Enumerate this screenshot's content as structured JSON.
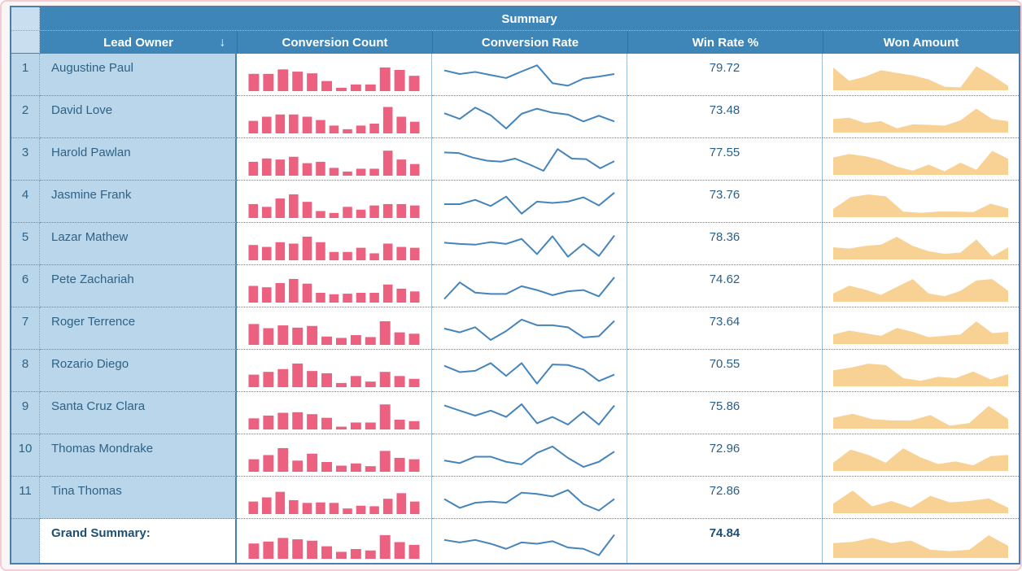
{
  "colors": {
    "header_bg": "#3e86b8",
    "header_text": "#ffffff",
    "light_cell_bg": "#b9d6ea",
    "bar": "#ec6080",
    "line": "#4584bb",
    "area": "#f8d194",
    "row_text": "#2f6286",
    "table_border": "#4b7ea8",
    "frame_border": "#f3ccd4"
  },
  "header": {
    "summary_label": "Summary",
    "sort_icon": "↓"
  },
  "chart_data": {
    "type": "table",
    "title": "Summary",
    "columns": [
      "Lead Owner",
      "Conversion Count",
      "Conversion Rate",
      "Win Rate %",
      "Won Amount"
    ],
    "sort": {
      "column": "Lead Owner",
      "direction": "descending"
    },
    "sparkline_scale": "values normalized 0-100, estimated from pixels",
    "sparkline_types": {
      "conversion_count": "bar",
      "conversion_rate": "line",
      "won_amount": "area"
    },
    "rows": [
      {
        "index": 1,
        "lead_owner": "Augustine Paul",
        "win_rate_pct": 79.72,
        "conversion_count_bars": [
          62,
          62,
          78,
          70,
          64,
          36,
          12,
          24,
          24,
          85,
          76,
          55
        ],
        "conversion_rate_line": [
          72,
          58,
          66,
          54,
          42,
          68,
          92,
          22,
          12,
          40,
          48,
          58
        ],
        "won_amount_area": [
          85,
          35,
          50,
          75,
          65,
          55,
          40,
          12,
          10,
          90,
          55,
          15
        ]
      },
      {
        "index": 2,
        "lead_owner": "David Love",
        "win_rate_pct": 73.48,
        "conversion_count_bars": [
          45,
          60,
          68,
          68,
          60,
          48,
          28,
          15,
          28,
          35,
          95,
          60,
          42
        ],
        "conversion_rate_line": [
          70,
          48,
          92,
          62,
          10,
          68,
          88,
          72,
          65,
          38,
          60,
          38
        ],
        "won_amount_area": [
          50,
          55,
          35,
          42,
          15,
          30,
          28,
          25,
          45,
          90,
          50,
          42
        ]
      },
      {
        "index": 3,
        "lead_owner": "Harold Pawlan",
        "win_rate_pct": 77.55,
        "conversion_count_bars": [
          50,
          62,
          58,
          68,
          45,
          50,
          28,
          15,
          25,
          25,
          90,
          58,
          42
        ],
        "conversion_rate_line": [
          82,
          80,
          62,
          50,
          46,
          58,
          35,
          10,
          95,
          58,
          56,
          20,
          48
        ],
        "won_amount_area": [
          65,
          78,
          70,
          55,
          30,
          15,
          38,
          12,
          45,
          18,
          90,
          60
        ]
      },
      {
        "index": 4,
        "lead_owner": "Jasmine Frank",
        "win_rate_pct": 73.76,
        "conversion_count_bars": [
          50,
          40,
          70,
          85,
          58,
          25,
          18,
          40,
          30,
          45,
          50,
          50,
          45
        ],
        "conversion_rate_line": [
          45,
          45,
          62,
          38,
          75,
          8,
          55,
          50,
          55,
          72,
          40,
          90
        ],
        "won_amount_area": [
          30,
          75,
          85,
          78,
          20,
          15,
          20,
          20,
          18,
          50,
          32
        ]
      },
      {
        "index": 5,
        "lead_owner": "Lazar Mathew",
        "win_rate_pct": 78.36,
        "conversion_count_bars": [
          55,
          48,
          65,
          60,
          85,
          65,
          30,
          30,
          45,
          25,
          60,
          48,
          45
        ],
        "conversion_rate_line": [
          60,
          55,
          52,
          62,
          55,
          75,
          15,
          85,
          5,
          55,
          8,
          88
        ],
        "won_amount_area": [
          45,
          40,
          50,
          55,
          85,
          50,
          30,
          20,
          25,
          75,
          10,
          45
        ]
      },
      {
        "index": 6,
        "lead_owner": "Pete Zachariah",
        "win_rate_pct": 74.62,
        "conversion_count_bars": [
          60,
          55,
          70,
          85,
          68,
          35,
          30,
          32,
          35,
          35,
          65,
          50,
          40
        ],
        "conversion_rate_line": [
          5,
          70,
          30,
          25,
          25,
          55,
          40,
          20,
          35,
          40,
          15,
          90
        ],
        "won_amount_area": [
          30,
          60,
          45,
          25,
          55,
          85,
          30,
          20,
          40,
          80,
          85,
          40
        ]
      },
      {
        "index": 7,
        "lead_owner": "Roger Terrence",
        "win_rate_pct": 73.64,
        "conversion_count_bars": [
          75,
          60,
          70,
          62,
          68,
          30,
          25,
          35,
          28,
          85,
          45,
          40
        ],
        "conversion_rate_line": [
          55,
          40,
          60,
          10,
          45,
          90,
          68,
          68,
          60,
          20,
          25,
          85
        ],
        "won_amount_area": [
          35,
          50,
          40,
          30,
          60,
          45,
          25,
          30,
          35,
          85,
          40,
          45
        ]
      },
      {
        "index": 8,
        "lead_owner": "Rozario Diego",
        "win_rate_pct": 70.55,
        "conversion_count_bars": [
          45,
          55,
          65,
          85,
          58,
          50,
          15,
          40,
          20,
          55,
          40,
          30
        ],
        "conversion_rate_line": [
          75,
          50,
          55,
          85,
          35,
          85,
          5,
          80,
          78,
          60,
          15,
          40
        ],
        "won_amount_area": [
          60,
          70,
          85,
          80,
          30,
          20,
          35,
          30,
          55,
          25,
          45
        ]
      },
      {
        "index": 9,
        "lead_owner": "Santa Cruz Clara",
        "win_rate_pct": 75.86,
        "conversion_count_bars": [
          40,
          50,
          60,
          62,
          55,
          42,
          10,
          25,
          25,
          90,
          35,
          30
        ],
        "conversion_rate_line": [
          85,
          65,
          45,
          65,
          40,
          90,
          15,
          40,
          10,
          60,
          10,
          85
        ],
        "won_amount_area": [
          40,
          55,
          35,
          30,
          30,
          50,
          10,
          20,
          85,
          35
        ]
      },
      {
        "index": 10,
        "lead_owner": "Thomas Mondrake",
        "win_rate_pct": 72.96,
        "conversion_count_bars": [
          45,
          60,
          85,
          40,
          65,
          35,
          22,
          30,
          20,
          75,
          50,
          45
        ],
        "conversion_rate_line": [
          35,
          25,
          50,
          50,
          30,
          20,
          65,
          90,
          45,
          10,
          30,
          70
        ],
        "won_amount_area": [
          30,
          80,
          60,
          30,
          85,
          50,
          25,
          35,
          20,
          55,
          60
        ]
      },
      {
        "index": 11,
        "lead_owner": "Tina Thomas",
        "win_rate_pct": 72.86,
        "conversion_count_bars": [
          45,
          60,
          80,
          50,
          40,
          42,
          40,
          20,
          30,
          28,
          55,
          75,
          45
        ],
        "conversion_rate_line": [
          50,
          15,
          35,
          40,
          35,
          75,
          70,
          60,
          85,
          30,
          5,
          50
        ],
        "won_amount_area": [
          35,
          85,
          25,
          45,
          20,
          65,
          40,
          45,
          55,
          20
        ]
      }
    ],
    "grand_summary": {
      "label": "Grand Summary:",
      "win_rate_pct": 74.84,
      "conversion_count_bars": [
        55,
        62,
        75,
        70,
        65,
        45,
        25,
        35,
        30,
        85,
        60,
        50
      ],
      "conversion_rate_line": [
        65,
        55,
        65,
        50,
        30,
        55,
        50,
        60,
        35,
        30,
        5,
        85
      ],
      "won_amount_area": [
        55,
        60,
        75,
        55,
        65,
        30,
        25,
        30,
        85,
        45
      ]
    }
  }
}
